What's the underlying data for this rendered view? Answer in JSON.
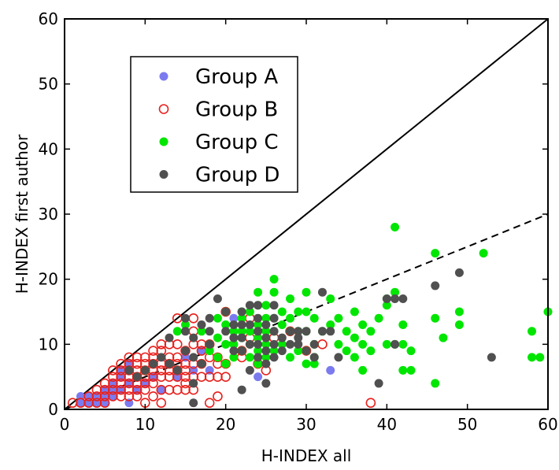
{
  "chart_data": {
    "type": "scatter",
    "xlabel": "H-INDEX all",
    "ylabel": "H-INDEX first author",
    "xlim": [
      0,
      60
    ],
    "ylim": [
      0,
      60
    ],
    "x_ticks": [
      0,
      10,
      20,
      30,
      40,
      50,
      60
    ],
    "y_ticks": [
      0,
      10,
      20,
      30,
      40,
      50,
      60
    ],
    "grid": false,
    "legend_position": "top-left",
    "reference_lines": [
      {
        "style": "solid",
        "points": [
          [
            0,
            0
          ],
          [
            60,
            60
          ]
        ]
      },
      {
        "style": "dashed",
        "points": [
          [
            0,
            0
          ],
          [
            60,
            30
          ]
        ]
      }
    ],
    "series": [
      {
        "name": "Group A",
        "marker": "filled-circle",
        "color": "#7b7bef",
        "points": [
          [
            2,
            1
          ],
          [
            2,
            2
          ],
          [
            3,
            1
          ],
          [
            3,
            2
          ],
          [
            4,
            1
          ],
          [
            4,
            2
          ],
          [
            5,
            1
          ],
          [
            5,
            2
          ],
          [
            5,
            3
          ],
          [
            6,
            2
          ],
          [
            6,
            3
          ],
          [
            6,
            4
          ],
          [
            7,
            3
          ],
          [
            7,
            5
          ],
          [
            7,
            6
          ],
          [
            8,
            1
          ],
          [
            8,
            4
          ],
          [
            8,
            7
          ],
          [
            9,
            3
          ],
          [
            9,
            5
          ],
          [
            10,
            4
          ],
          [
            10,
            6
          ],
          [
            11,
            5
          ],
          [
            12,
            3
          ],
          [
            13,
            7
          ],
          [
            14,
            5
          ],
          [
            15,
            8
          ],
          [
            16,
            6
          ],
          [
            17,
            9
          ],
          [
            18,
            6
          ],
          [
            21,
            14
          ],
          [
            24,
            5
          ],
          [
            33,
            6
          ]
        ]
      },
      {
        "name": "Group B",
        "marker": "open-circle",
        "color": "#e8201c",
        "points": [
          [
            1,
            1
          ],
          [
            2,
            1
          ],
          [
            3,
            1
          ],
          [
            3,
            2
          ],
          [
            4,
            1
          ],
          [
            4,
            2
          ],
          [
            4,
            3
          ],
          [
            5,
            1
          ],
          [
            5,
            2
          ],
          [
            5,
            3
          ],
          [
            5,
            4
          ],
          [
            6,
            2
          ],
          [
            6,
            3
          ],
          [
            6,
            4
          ],
          [
            6,
            5
          ],
          [
            6,
            6
          ],
          [
            7,
            2
          ],
          [
            7,
            3
          ],
          [
            7,
            4
          ],
          [
            7,
            5
          ],
          [
            7,
            6
          ],
          [
            7,
            7
          ],
          [
            8,
            2
          ],
          [
            8,
            3
          ],
          [
            8,
            4
          ],
          [
            8,
            5
          ],
          [
            8,
            6
          ],
          [
            8,
            7
          ],
          [
            8,
            8
          ],
          [
            9,
            2
          ],
          [
            9,
            3
          ],
          [
            9,
            4
          ],
          [
            9,
            5
          ],
          [
            9,
            6
          ],
          [
            9,
            7
          ],
          [
            9,
            8
          ],
          [
            10,
            1
          ],
          [
            10,
            3
          ],
          [
            10,
            4
          ],
          [
            10,
            5
          ],
          [
            10,
            6
          ],
          [
            10,
            7
          ],
          [
            10,
            8
          ],
          [
            11,
            2
          ],
          [
            11,
            4
          ],
          [
            11,
            5
          ],
          [
            11,
            6
          ],
          [
            11,
            7
          ],
          [
            11,
            8
          ],
          [
            11,
            9
          ],
          [
            12,
            1
          ],
          [
            12,
            3
          ],
          [
            12,
            5
          ],
          [
            12,
            6
          ],
          [
            12,
            7
          ],
          [
            12,
            9
          ],
          [
            12,
            10
          ],
          [
            13,
            3
          ],
          [
            13,
            5
          ],
          [
            13,
            6
          ],
          [
            13,
            7
          ],
          [
            13,
            8
          ],
          [
            13,
            10
          ],
          [
            14,
            3
          ],
          [
            14,
            5
          ],
          [
            14,
            6
          ],
          [
            14,
            7
          ],
          [
            14,
            8
          ],
          [
            14,
            10
          ],
          [
            14,
            14
          ],
          [
            15,
            3
          ],
          [
            15,
            4
          ],
          [
            15,
            5
          ],
          [
            15,
            6
          ],
          [
            15,
            7
          ],
          [
            15,
            9
          ],
          [
            16,
            3
          ],
          [
            16,
            5
          ],
          [
            16,
            7
          ],
          [
            16,
            10
          ],
          [
            16,
            12
          ],
          [
            16,
            14
          ],
          [
            17,
            5
          ],
          [
            17,
            7
          ],
          [
            17,
            9
          ],
          [
            17,
            10
          ],
          [
            18,
            1
          ],
          [
            18,
            5
          ],
          [
            18,
            8
          ],
          [
            18,
            10
          ],
          [
            19,
            2
          ],
          [
            19,
            5
          ],
          [
            19,
            7
          ],
          [
            19,
            8
          ],
          [
            20,
            5
          ],
          [
            20,
            7
          ],
          [
            20,
            15
          ],
          [
            22,
            8
          ],
          [
            22,
            9
          ],
          [
            23,
            11
          ],
          [
            23,
            14
          ],
          [
            24,
            7
          ],
          [
            25,
            6
          ],
          [
            26,
            11
          ],
          [
            28,
            12
          ],
          [
            30,
            9
          ],
          [
            32,
            10
          ],
          [
            38,
            1
          ]
        ]
      },
      {
        "name": "Group C",
        "marker": "filled-circle",
        "color": "#00e600",
        "points": [
          [
            10,
            6
          ],
          [
            14,
            12
          ],
          [
            15,
            13
          ],
          [
            17,
            12
          ],
          [
            18,
            9
          ],
          [
            18,
            10
          ],
          [
            19,
            8
          ],
          [
            19,
            11
          ],
          [
            19,
            14
          ],
          [
            20,
            7
          ],
          [
            20,
            10
          ],
          [
            20,
            13
          ],
          [
            20,
            15
          ],
          [
            21,
            8
          ],
          [
            21,
            10
          ],
          [
            21,
            12
          ],
          [
            22,
            9
          ],
          [
            22,
            11
          ],
          [
            22,
            12
          ],
          [
            22,
            14
          ],
          [
            22,
            15
          ],
          [
            23,
            8
          ],
          [
            23,
            10
          ],
          [
            23,
            12
          ],
          [
            23,
            15
          ],
          [
            24,
            7
          ],
          [
            24,
            9
          ],
          [
            24,
            11
          ],
          [
            24,
            13
          ],
          [
            24,
            16
          ],
          [
            24,
            18
          ],
          [
            25,
            8
          ],
          [
            25,
            10
          ],
          [
            25,
            12
          ],
          [
            25,
            14
          ],
          [
            25,
            16
          ],
          [
            26,
            9
          ],
          [
            26,
            12
          ],
          [
            26,
            14
          ],
          [
            26,
            18
          ],
          [
            26,
            20
          ],
          [
            27,
            10
          ],
          [
            27,
            13
          ],
          [
            27,
            15
          ],
          [
            28,
            8
          ],
          [
            28,
            12
          ],
          [
            28,
            14
          ],
          [
            28,
            17
          ],
          [
            29,
            9
          ],
          [
            29,
            12
          ],
          [
            29,
            15
          ],
          [
            30,
            7
          ],
          [
            30,
            9
          ],
          [
            30,
            12
          ],
          [
            30,
            15
          ],
          [
            30,
            18
          ],
          [
            31,
            8
          ],
          [
            31,
            10
          ],
          [
            31,
            14
          ],
          [
            31,
            7
          ],
          [
            32,
            12
          ],
          [
            33,
            13
          ],
          [
            33,
            17
          ],
          [
            34,
            10
          ],
          [
            34,
            14
          ],
          [
            35,
            9
          ],
          [
            35,
            12
          ],
          [
            36,
            8
          ],
          [
            36,
            11
          ],
          [
            36,
            15
          ],
          [
            37,
            6
          ],
          [
            37,
            10
          ],
          [
            37,
            13
          ],
          [
            38,
            9
          ],
          [
            38,
            12
          ],
          [
            39,
            14
          ],
          [
            40,
            10
          ],
          [
            40,
            16
          ],
          [
            40,
            17
          ],
          [
            41,
            10
          ],
          [
            41,
            18
          ],
          [
            41,
            28
          ],
          [
            42,
            13
          ],
          [
            42,
            10
          ],
          [
            42,
            6
          ],
          [
            43,
            9
          ],
          [
            43,
            6
          ],
          [
            46,
            4
          ],
          [
            46,
            14
          ],
          [
            46,
            24
          ],
          [
            47,
            11
          ],
          [
            49,
            13
          ],
          [
            49,
            15
          ],
          [
            52,
            24
          ],
          [
            58,
            8
          ],
          [
            58,
            12
          ],
          [
            59,
            8
          ],
          [
            60,
            15
          ]
        ]
      },
      {
        "name": "Group D",
        "marker": "filled-circle",
        "color": "#505050",
        "points": [
          [
            8,
            6
          ],
          [
            9,
            5
          ],
          [
            10,
            6
          ],
          [
            11,
            7
          ],
          [
            12,
            8
          ],
          [
            13,
            7
          ],
          [
            13,
            11
          ],
          [
            14,
            6
          ],
          [
            15,
            9
          ],
          [
            15,
            12
          ],
          [
            15,
            14
          ],
          [
            16,
            1
          ],
          [
            16,
            4
          ],
          [
            16,
            8
          ],
          [
            16,
            11
          ],
          [
            17,
            7
          ],
          [
            17,
            13
          ],
          [
            18,
            10
          ],
          [
            18,
            12
          ],
          [
            18,
            14
          ],
          [
            19,
            17
          ],
          [
            20,
            12
          ],
          [
            20,
            15
          ],
          [
            21,
            9
          ],
          [
            21,
            11
          ],
          [
            21,
            13
          ],
          [
            22,
            3
          ],
          [
            22,
            9
          ],
          [
            22,
            11
          ],
          [
            22,
            13
          ],
          [
            22,
            15
          ],
          [
            23,
            6
          ],
          [
            23,
            10
          ],
          [
            23,
            13
          ],
          [
            23,
            16
          ],
          [
            24,
            8
          ],
          [
            24,
            10
          ],
          [
            24,
            12
          ],
          [
            24,
            14
          ],
          [
            24,
            16
          ],
          [
            25,
            4
          ],
          [
            25,
            7
          ],
          [
            25,
            9
          ],
          [
            25,
            11
          ],
          [
            25,
            13
          ],
          [
            26,
            8
          ],
          [
            26,
            10
          ],
          [
            26,
            12
          ],
          [
            26,
            14
          ],
          [
            26,
            16
          ],
          [
            27,
            9
          ],
          [
            27,
            11
          ],
          [
            28,
            10
          ],
          [
            28,
            12
          ],
          [
            29,
            10
          ],
          [
            29,
            11
          ],
          [
            29,
            12
          ],
          [
            30,
            12
          ],
          [
            30,
            9
          ],
          [
            31,
            8
          ],
          [
            31,
            10
          ],
          [
            32,
            12
          ],
          [
            32,
            18
          ],
          [
            33,
            12
          ],
          [
            34,
            8
          ],
          [
            39,
            4
          ],
          [
            40,
            17
          ],
          [
            41,
            10
          ],
          [
            41,
            17
          ],
          [
            42,
            17
          ],
          [
            46,
            19
          ],
          [
            49,
            21
          ],
          [
            53,
            8
          ]
        ]
      }
    ]
  }
}
